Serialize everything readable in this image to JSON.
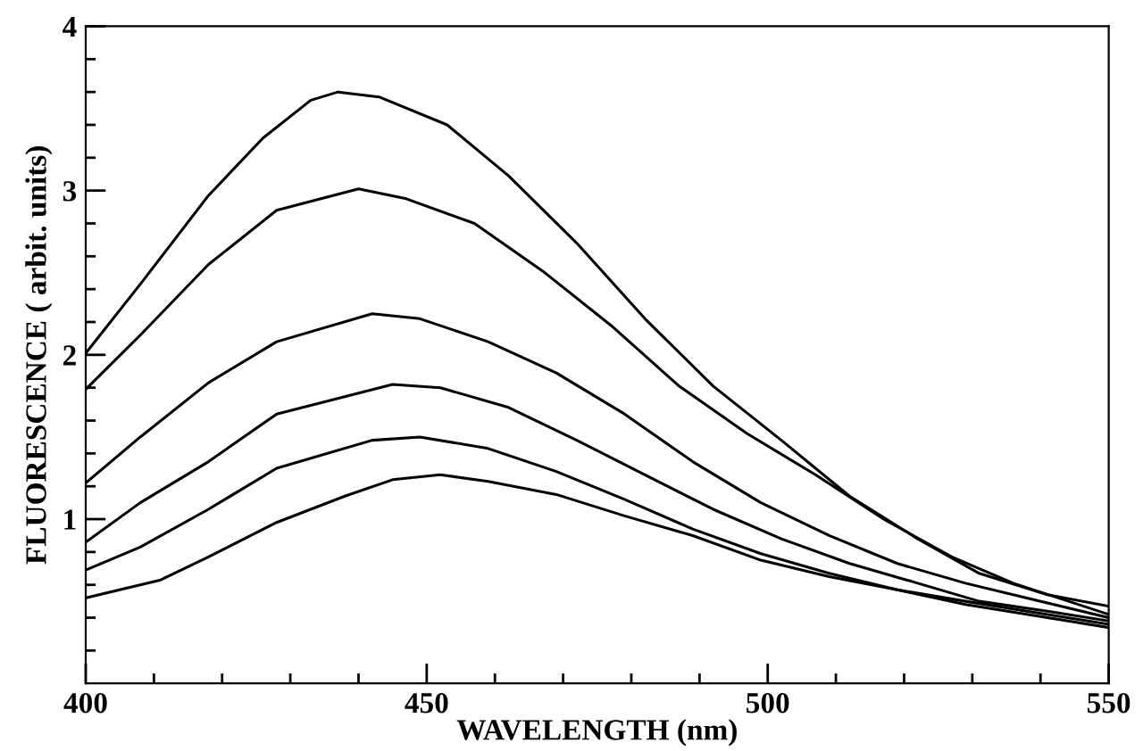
{
  "chart_data": {
    "type": "line",
    "xlabel": "WAVELENGTH (nm)",
    "ylabel": "FLUORESCENCE ( arbit. units)",
    "xlim": [
      400,
      550
    ],
    "ylim": [
      0,
      4
    ],
    "xticks": [
      400,
      {
        "value": 410,
        "label": null
      },
      {
        "value": 420,
        "label": null
      },
      {
        "value": 430,
        "label": null
      },
      {
        "value": 440,
        "label": null
      },
      450,
      {
        "value": 460,
        "label": null
      },
      {
        "value": 470,
        "label": null
      },
      {
        "value": 480,
        "label": null
      },
      {
        "value": 490,
        "label": null
      },
      500,
      {
        "value": 510,
        "label": null
      },
      {
        "value": 520,
        "label": null
      },
      {
        "value": 530,
        "label": null
      },
      {
        "value": 540,
        "label": null
      },
      550
    ],
    "yticks": [
      {
        "value": 0.2,
        "label": null
      },
      {
        "value": 0.4,
        "label": null
      },
      {
        "value": 0.6,
        "label": null
      },
      {
        "value": 0.8,
        "label": null
      },
      1,
      {
        "value": 1.2,
        "label": null
      },
      {
        "value": 1.4,
        "label": null
      },
      {
        "value": 1.6,
        "label": null
      },
      {
        "value": 1.8,
        "label": null
      },
      2,
      {
        "value": 2.2,
        "label": null
      },
      {
        "value": 2.4,
        "label": null
      },
      {
        "value": 2.6,
        "label": null
      },
      {
        "value": 2.8,
        "label": null
      },
      3,
      {
        "value": 3.2,
        "label": null
      },
      {
        "value": 3.4,
        "label": null
      },
      {
        "value": 3.6,
        "label": null
      },
      {
        "value": 3.8,
        "label": null
      },
      4
    ],
    "grid": false,
    "legend": false,
    "marker": "none",
    "line_style": "solid",
    "series": [
      {
        "color": "#000000",
        "x": [
          400,
          408,
          418,
          426,
          433,
          437,
          443,
          453,
          462,
          472,
          482,
          492,
          502,
          512,
          522,
          531,
          541,
          550
        ],
        "values": [
          2.01,
          2.43,
          2.97,
          3.32,
          3.55,
          3.6,
          3.57,
          3.4,
          3.09,
          2.68,
          2.22,
          1.81,
          1.48,
          1.14,
          0.88,
          0.67,
          0.54,
          0.47
        ]
      },
      {
        "color": "#000000",
        "x": [
          400,
          408,
          418,
          428,
          440,
          447,
          457,
          467,
          477,
          487,
          497,
          507,
          517,
          527,
          536,
          550
        ],
        "values": [
          1.79,
          2.12,
          2.55,
          2.88,
          3.01,
          2.95,
          2.8,
          2.51,
          2.18,
          1.81,
          1.52,
          1.27,
          1.0,
          0.77,
          0.61,
          0.42
        ]
      },
      {
        "color": "#000000",
        "x": [
          400,
          408,
          418,
          428,
          442,
          449,
          459,
          469,
          479,
          489,
          499,
          509,
          519,
          529,
          538,
          550
        ],
        "values": [
          1.22,
          1.5,
          1.83,
          2.08,
          2.25,
          2.22,
          2.08,
          1.89,
          1.64,
          1.35,
          1.1,
          0.9,
          0.73,
          0.61,
          0.52,
          0.4
        ]
      },
      {
        "color": "#000000",
        "x": [
          400,
          408,
          418,
          428,
          445,
          452,
          462,
          472,
          482,
          492,
          502,
          512,
          522,
          531,
          541,
          550
        ],
        "values": [
          0.86,
          1.1,
          1.35,
          1.64,
          1.82,
          1.8,
          1.68,
          1.48,
          1.27,
          1.06,
          0.88,
          0.73,
          0.61,
          0.5,
          0.44,
          0.38
        ]
      },
      {
        "color": "#000000",
        "x": [
          400,
          408,
          418,
          428,
          442,
          449,
          459,
          469,
          479,
          489,
          499,
          509,
          519,
          529,
          538,
          550
        ],
        "values": [
          0.69,
          0.83,
          1.06,
          1.31,
          1.48,
          1.5,
          1.43,
          1.29,
          1.12,
          0.94,
          0.79,
          0.67,
          0.57,
          0.5,
          0.44,
          0.36
        ]
      },
      {
        "color": "#000000",
        "x": [
          400,
          411,
          418,
          428,
          438,
          445,
          452,
          459,
          469,
          479,
          489,
          499,
          509,
          519,
          529,
          538,
          550
        ],
        "values": [
          0.52,
          0.63,
          0.77,
          0.98,
          1.14,
          1.24,
          1.27,
          1.23,
          1.15,
          1.02,
          0.9,
          0.75,
          0.65,
          0.57,
          0.48,
          0.42,
          0.34
        ]
      }
    ]
  }
}
